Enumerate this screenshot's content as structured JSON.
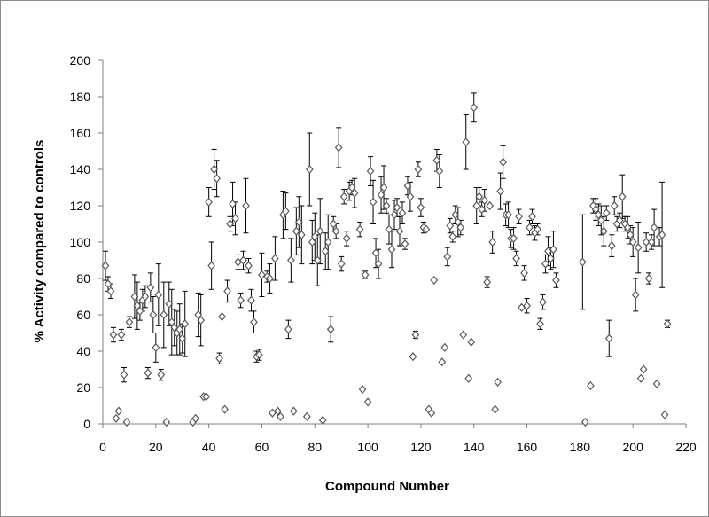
{
  "chart_data": {
    "type": "scatter",
    "xlabel": "Compound Number",
    "ylabel": "% Activity compared to controls",
    "xlim": [
      0,
      220
    ],
    "ylim": [
      0,
      200
    ],
    "x_ticks": [
      0,
      20,
      40,
      60,
      80,
      100,
      120,
      140,
      160,
      180,
      200,
      220
    ],
    "y_ticks": [
      0,
      20,
      40,
      60,
      80,
      100,
      120,
      140,
      160,
      180,
      200
    ],
    "grid": false,
    "legend": "none",
    "marker": "open-diamond",
    "marker_color": "#595959",
    "points": [
      {
        "x": 1,
        "y": 87,
        "err": 8
      },
      {
        "x": 2,
        "y": 77,
        "err": 4
      },
      {
        "x": 3,
        "y": 73,
        "err": 4
      },
      {
        "x": 4,
        "y": 49,
        "err": 4
      },
      {
        "x": 5,
        "y": 3
      },
      {
        "x": 6,
        "y": 7
      },
      {
        "x": 7,
        "y": 49,
        "err": 3
      },
      {
        "x": 8,
        "y": 27,
        "err": 4
      },
      {
        "x": 9,
        "y": 1
      },
      {
        "x": 10,
        "y": 56,
        "err": 3
      },
      {
        "x": 12,
        "y": 70,
        "err": 12
      },
      {
        "x": 13,
        "y": 65,
        "err": 13
      },
      {
        "x": 14,
        "y": 62,
        "err": 5
      },
      {
        "x": 15,
        "y": 68,
        "err": 6
      },
      {
        "x": 16,
        "y": 70,
        "err": 6
      },
      {
        "x": 17,
        "y": 28,
        "err": 3
      },
      {
        "x": 18,
        "y": 75,
        "err": 8
      },
      {
        "x": 19,
        "y": 60,
        "err": 10
      },
      {
        "x": 20,
        "y": 42,
        "err": 8
      },
      {
        "x": 21,
        "y": 71,
        "err": 17
      },
      {
        "x": 22,
        "y": 27,
        "err": 3
      },
      {
        "x": 23,
        "y": 60,
        "err": 18
      },
      {
        "x": 24,
        "y": 1
      },
      {
        "x": 25,
        "y": 66,
        "err": 12
      },
      {
        "x": 26,
        "y": 56,
        "err": 18
      },
      {
        "x": 27,
        "y": 53,
        "err": 10
      },
      {
        "x": 28,
        "y": 50,
        "err": 12
      },
      {
        "x": 29,
        "y": 52,
        "err": 14
      },
      {
        "x": 30,
        "y": 47,
        "err": 8
      },
      {
        "x": 31,
        "y": 55,
        "err": 18
      },
      {
        "x": 34,
        "y": 1
      },
      {
        "x": 35,
        "y": 3
      },
      {
        "x": 36,
        "y": 60,
        "err": 12
      },
      {
        "x": 37,
        "y": 57,
        "err": 14
      },
      {
        "x": 38,
        "y": 15
      },
      {
        "x": 39,
        "y": 15
      },
      {
        "x": 40,
        "y": 122,
        "err": 8
      },
      {
        "x": 41,
        "y": 87,
        "err": 13
      },
      {
        "x": 42,
        "y": 140,
        "err": 11
      },
      {
        "x": 43,
        "y": 135,
        "err": 10
      },
      {
        "x": 44,
        "y": 36,
        "err": 3
      },
      {
        "x": 45,
        "y": 59
      },
      {
        "x": 46,
        "y": 8
      },
      {
        "x": 47,
        "y": 73,
        "err": 6
      },
      {
        "x": 48,
        "y": 110,
        "err": 4
      },
      {
        "x": 49,
        "y": 121,
        "err": 12
      },
      {
        "x": 50,
        "y": 113,
        "err": 9
      },
      {
        "x": 51,
        "y": 89,
        "err": 4
      },
      {
        "x": 52,
        "y": 68,
        "err": 4
      },
      {
        "x": 53,
        "y": 90,
        "err": 5
      },
      {
        "x": 54,
        "y": 120,
        "err": 15
      },
      {
        "x": 55,
        "y": 87,
        "err": 4
      },
      {
        "x": 56,
        "y": 68,
        "err": 6
      },
      {
        "x": 57,
        "y": 56,
        "err": 6
      },
      {
        "x": 58,
        "y": 37,
        "err": 3
      },
      {
        "x": 59,
        "y": 38,
        "err": 3
      },
      {
        "x": 60,
        "y": 82,
        "err": 12
      },
      {
        "x": 62,
        "y": 81,
        "err": 3
      },
      {
        "x": 63,
        "y": 80,
        "err": 8
      },
      {
        "x": 64,
        "y": 6
      },
      {
        "x": 65,
        "y": 91,
        "err": 12
      },
      {
        "x": 66,
        "y": 7
      },
      {
        "x": 67,
        "y": 4
      },
      {
        "x": 68,
        "y": 115,
        "err": 13
      },
      {
        "x": 69,
        "y": 117,
        "err": 10
      },
      {
        "x": 70,
        "y": 52,
        "err": 5
      },
      {
        "x": 71,
        "y": 90,
        "err": 12
      },
      {
        "x": 72,
        "y": 7
      },
      {
        "x": 73,
        "y": 106,
        "err": 13
      },
      {
        "x": 74,
        "y": 111,
        "err": 14
      },
      {
        "x": 75,
        "y": 104,
        "err": 16
      },
      {
        "x": 77,
        "y": 4
      },
      {
        "x": 78,
        "y": 140,
        "err": 20
      },
      {
        "x": 79,
        "y": 100,
        "err": 12
      },
      {
        "x": 80,
        "y": 103,
        "err": 13
      },
      {
        "x": 81,
        "y": 90,
        "err": 14
      },
      {
        "x": 82,
        "y": 106,
        "err": 18
      },
      {
        "x": 83,
        "y": 2
      },
      {
        "x": 84,
        "y": 95,
        "err": 10
      },
      {
        "x": 85,
        "y": 100,
        "err": 15
      },
      {
        "x": 86,
        "y": 52,
        "err": 7
      },
      {
        "x": 87,
        "y": 110,
        "err": 4
      },
      {
        "x": 88,
        "y": 106,
        "err": 4
      },
      {
        "x": 89,
        "y": 152,
        "err": 11
      },
      {
        "x": 90,
        "y": 88,
        "err": 4
      },
      {
        "x": 91,
        "y": 125,
        "err": 4
      },
      {
        "x": 92,
        "y": 102,
        "err": 4
      },
      {
        "x": 93,
        "y": 128,
        "err": 5
      },
      {
        "x": 94,
        "y": 130,
        "err": 4
      },
      {
        "x": 95,
        "y": 127,
        "err": 8
      },
      {
        "x": 97,
        "y": 107,
        "err": 4
      },
      {
        "x": 98,
        "y": 19
      },
      {
        "x": 99,
        "y": 82,
        "err": 2
      },
      {
        "x": 100,
        "y": 12
      },
      {
        "x": 101,
        "y": 139,
        "err": 8
      },
      {
        "x": 102,
        "y": 122,
        "err": 12
      },
      {
        "x": 103,
        "y": 94,
        "err": 8
      },
      {
        "x": 104,
        "y": 88,
        "err": 8
      },
      {
        "x": 105,
        "y": 126,
        "err": 10
      },
      {
        "x": 106,
        "y": 130,
        "err": 12
      },
      {
        "x": 107,
        "y": 120,
        "err": 4
      },
      {
        "x": 108,
        "y": 107,
        "err": 8
      },
      {
        "x": 109,
        "y": 96,
        "err": 10
      },
      {
        "x": 110,
        "y": 115,
        "err": 8
      },
      {
        "x": 111,
        "y": 119,
        "err": 5
      },
      {
        "x": 112,
        "y": 106,
        "err": 8
      },
      {
        "x": 113,
        "y": 116,
        "err": 6
      },
      {
        "x": 114,
        "y": 99,
        "err": 3
      },
      {
        "x": 115,
        "y": 131,
        "err": 5
      },
      {
        "x": 116,
        "y": 125,
        "err": 8
      },
      {
        "x": 117,
        "y": 37
      },
      {
        "x": 118,
        "y": 49,
        "err": 2
      },
      {
        "x": 119,
        "y": 140,
        "err": 4
      },
      {
        "x": 120,
        "y": 119,
        "err": 5
      },
      {
        "x": 121,
        "y": 108,
        "err": 3
      },
      {
        "x": 122,
        "y": 107
      },
      {
        "x": 123,
        "y": 8
      },
      {
        "x": 124,
        "y": 6
      },
      {
        "x": 125,
        "y": 79
      },
      {
        "x": 126,
        "y": 145,
        "err": 6
      },
      {
        "x": 127,
        "y": 139,
        "err": 9
      },
      {
        "x": 128,
        "y": 34
      },
      {
        "x": 129,
        "y": 42
      },
      {
        "x": 130,
        "y": 92,
        "err": 5
      },
      {
        "x": 131,
        "y": 109,
        "err": 4
      },
      {
        "x": 132,
        "y": 103,
        "err": 3
      },
      {
        "x": 133,
        "y": 115,
        "err": 5
      },
      {
        "x": 134,
        "y": 111,
        "err": 8
      },
      {
        "x": 135,
        "y": 108,
        "err": 4
      },
      {
        "x": 136,
        "y": 49
      },
      {
        "x": 137,
        "y": 155,
        "err": 15
      },
      {
        "x": 138,
        "y": 25
      },
      {
        "x": 139,
        "y": 45
      },
      {
        "x": 140,
        "y": 174,
        "err": 8
      },
      {
        "x": 141,
        "y": 120,
        "err": 10
      },
      {
        "x": 142,
        "y": 125,
        "err": 5
      },
      {
        "x": 143,
        "y": 118,
        "err": 4
      },
      {
        "x": 144,
        "y": 123,
        "err": 6
      },
      {
        "x": 145,
        "y": 78,
        "err": 3
      },
      {
        "x": 146,
        "y": 120
      },
      {
        "x": 147,
        "y": 100,
        "err": 6
      },
      {
        "x": 148,
        "y": 8
      },
      {
        "x": 149,
        "y": 23
      },
      {
        "x": 150,
        "y": 128,
        "err": 10
      },
      {
        "x": 151,
        "y": 144,
        "err": 9
      },
      {
        "x": 152,
        "y": 115,
        "err": 6
      },
      {
        "x": 153,
        "y": 115,
        "err": 7
      },
      {
        "x": 154,
        "y": 102,
        "err": 5
      },
      {
        "x": 155,
        "y": 102,
        "err": 6
      },
      {
        "x": 156,
        "y": 91,
        "err": 4
      },
      {
        "x": 157,
        "y": 114,
        "err": 4
      },
      {
        "x": 158,
        "y": 64
      },
      {
        "x": 159,
        "y": 83,
        "err": 4
      },
      {
        "x": 160,
        "y": 65,
        "err": 4
      },
      {
        "x": 161,
        "y": 108,
        "err": 4
      },
      {
        "x": 162,
        "y": 114,
        "err": 4
      },
      {
        "x": 163,
        "y": 105,
        "err": 4
      },
      {
        "x": 164,
        "y": 107,
        "err": 3
      },
      {
        "x": 165,
        "y": 55,
        "err": 3
      },
      {
        "x": 166,
        "y": 67,
        "err": 4
      },
      {
        "x": 167,
        "y": 88,
        "err": 5
      },
      {
        "x": 168,
        "y": 95,
        "err": 8
      },
      {
        "x": 169,
        "y": 91,
        "err": 6
      },
      {
        "x": 170,
        "y": 96,
        "err": 10
      },
      {
        "x": 171,
        "y": 79,
        "err": 4
      },
      {
        "x": 181,
        "y": 89,
        "err": 26
      },
      {
        "x": 182,
        "y": 1
      },
      {
        "x": 184,
        "y": 21
      },
      {
        "x": 185,
        "y": 120,
        "err": 4
      },
      {
        "x": 186,
        "y": 118,
        "err": 6
      },
      {
        "x": 187,
        "y": 115,
        "err": 6
      },
      {
        "x": 188,
        "y": 112,
        "err": 8
      },
      {
        "x": 189,
        "y": 106,
        "err": 8
      },
      {
        "x": 190,
        "y": 116,
        "err": 4
      },
      {
        "x": 191,
        "y": 47,
        "err": 10
      },
      {
        "x": 192,
        "y": 98,
        "err": 6
      },
      {
        "x": 193,
        "y": 120,
        "err": 5
      },
      {
        "x": 194,
        "y": 110,
        "err": 4
      },
      {
        "x": 195,
        "y": 112,
        "err": 4
      },
      {
        "x": 196,
        "y": 125,
        "err": 12
      },
      {
        "x": 197,
        "y": 110,
        "err": 4
      },
      {
        "x": 198,
        "y": 108,
        "err": 6
      },
      {
        "x": 199,
        "y": 104,
        "err": 5
      },
      {
        "x": 200,
        "y": 100,
        "err": 8
      },
      {
        "x": 201,
        "y": 71,
        "err": 9
      },
      {
        "x": 202,
        "y": 97,
        "err": 14
      },
      {
        "x": 203,
        "y": 25
      },
      {
        "x": 204,
        "y": 30
      },
      {
        "x": 205,
        "y": 100,
        "err": 5
      },
      {
        "x": 206,
        "y": 80,
        "err": 3
      },
      {
        "x": 207,
        "y": 100,
        "err": 4
      },
      {
        "x": 208,
        "y": 108,
        "err": 10
      },
      {
        "x": 209,
        "y": 22
      },
      {
        "x": 210,
        "y": 103,
        "err": 5
      },
      {
        "x": 211,
        "y": 104,
        "err": 29
      },
      {
        "x": 212,
        "y": 5
      },
      {
        "x": 213,
        "y": 55,
        "err": 2
      }
    ]
  }
}
